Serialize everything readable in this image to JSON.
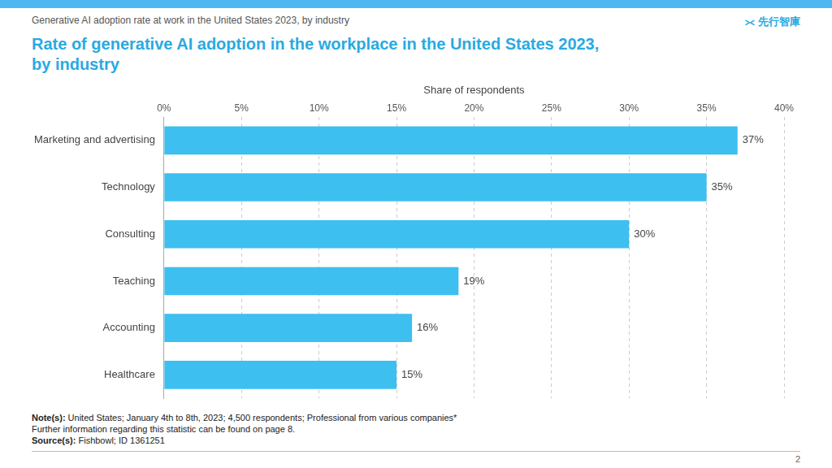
{
  "chart_data": {
    "type": "bar",
    "orientation": "horizontal",
    "title": "Rate of generative AI adoption in the workplace in the United States 2023,\nby industry",
    "subtitle": "Generative AI adoption rate at work in the United States 2023, by industry",
    "x_label": "Share of respondents",
    "categories": [
      "Healthcare",
      "Accounting",
      "Teaching",
      "Consulting",
      "Technology",
      "Marketing and advertising"
    ],
    "values": [
      15,
      16,
      19,
      30,
      35,
      37
    ],
    "value_labels": [
      "15%",
      "16%",
      "19%",
      "30%",
      "35%",
      "37%"
    ],
    "data_labels": true,
    "color": "#3dbfef",
    "xlim": [
      0,
      40
    ],
    "xticks": [
      {
        "value": 0,
        "label": "0%"
      },
      {
        "value": 5,
        "label": "5%"
      },
      {
        "value": 10,
        "label": "10%"
      },
      {
        "value": 15,
        "label": "15%"
      },
      {
        "value": 20,
        "label": "20%"
      },
      {
        "value": 25,
        "label": "25%"
      },
      {
        "value": 30,
        "label": "30%"
      },
      {
        "value": 35,
        "label": "35%"
      },
      {
        "value": 40,
        "label": "40%"
      }
    ],
    "grid": true,
    "annotations": [
      "⪥ 先行智庫",
      "Note(s): United States; January 4th to 8th, 2023; 4,500 respondents; Professional from various companies*",
      "Further information regarding this statistic can be found on page 8.",
      "Source(s): Fishbowl; ID 1361251",
      "2"
    ]
  }
}
